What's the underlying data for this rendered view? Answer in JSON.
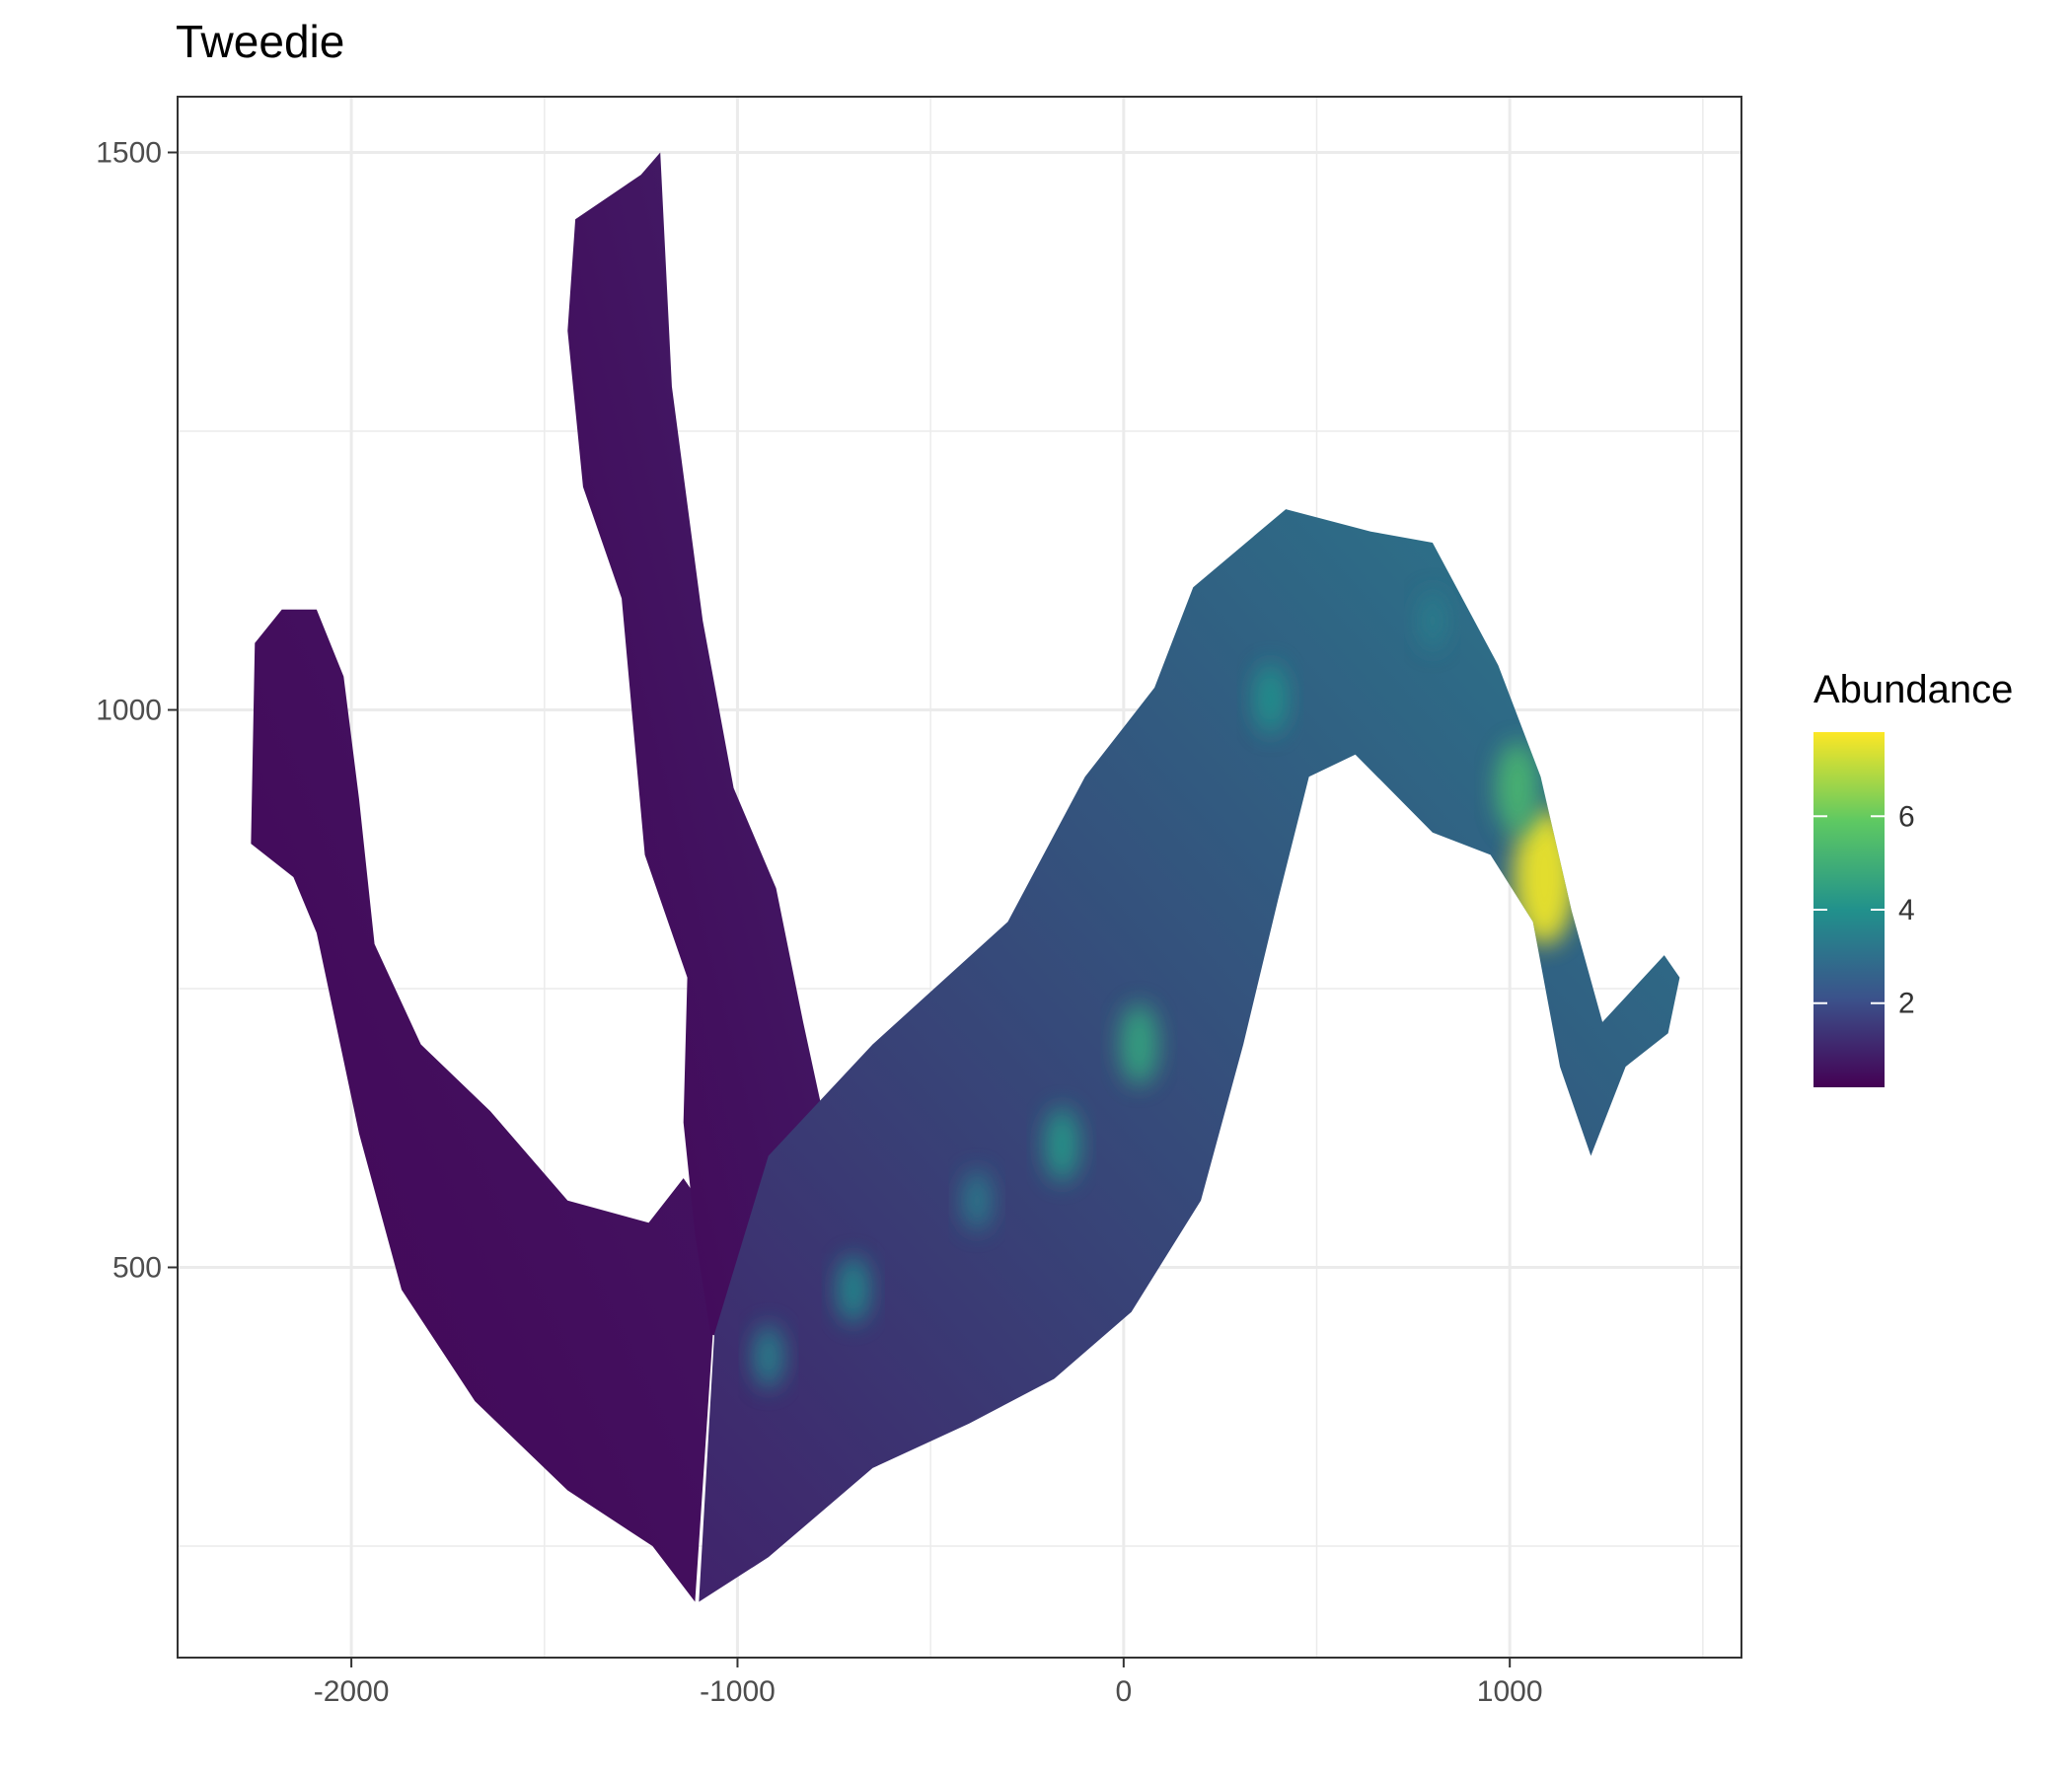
{
  "chart_data": {
    "type": "heatmap",
    "title": "Tweedie",
    "xlabel": "",
    "ylabel": "",
    "xlim": [
      -2450,
      1600
    ],
    "ylim": [
      150,
      1550
    ],
    "x_ticks": [
      -2000,
      -1000,
      0,
      1000
    ],
    "x_tick_labels": [
      "-2000",
      "-1000",
      "0",
      "1000"
    ],
    "y_ticks": [
      500,
      1000,
      1500
    ],
    "y_tick_labels": [
      "500",
      "1000",
      "1500"
    ],
    "grid": true,
    "legend": {
      "title": "Abundance",
      "position": "right",
      "ticks": [
        2,
        4,
        6
      ],
      "tick_labels": [
        "2",
        "4",
        "6"
      ],
      "range": [
        0.2,
        7.8
      ],
      "colormap": "viridis"
    },
    "colormap_stops": [
      "#440154",
      "#3b528b",
      "#21918c",
      "#5ec962",
      "#fde725"
    ],
    "regions": [
      {
        "name": "left-arm",
        "outline": [
          [
            -2090,
            1090
          ],
          [
            -2020,
            1030
          ],
          [
            -1980,
            920
          ],
          [
            -1940,
            790
          ],
          [
            -1820,
            700
          ],
          [
            -1640,
            640
          ],
          [
            -1440,
            560
          ],
          [
            -1230,
            540
          ],
          [
            -1140,
            580
          ],
          [
            -1100,
            560
          ],
          [
            -1060,
            460
          ],
          [
            -1110,
            200
          ],
          [
            -1220,
            250
          ],
          [
            -1440,
            300
          ],
          [
            -1680,
            380
          ],
          [
            -1870,
            480
          ],
          [
            -1980,
            620
          ],
          [
            -2090,
            800
          ],
          [
            -2150,
            850
          ],
          [
            -2260,
            880
          ],
          [
            -2250,
            1060
          ],
          [
            -2180,
            1090
          ]
        ],
        "value_range": [
          0.3,
          1.5
        ]
      },
      {
        "name": "tall-arm",
        "outline": [
          [
            -1200,
            1500
          ],
          [
            -1170,
            1290
          ],
          [
            -1090,
            1080
          ],
          [
            -1010,
            930
          ],
          [
            -900,
            840
          ],
          [
            -830,
            720
          ],
          [
            -780,
            640
          ],
          [
            -660,
            600
          ],
          [
            -740,
            530
          ],
          [
            -850,
            470
          ],
          [
            -960,
            430
          ],
          [
            -1070,
            440
          ],
          [
            -1110,
            530
          ],
          [
            -1140,
            630
          ],
          [
            -1130,
            760
          ],
          [
            -1240,
            870
          ],
          [
            -1300,
            1100
          ],
          [
            -1400,
            1200
          ],
          [
            -1440,
            1340
          ],
          [
            -1420,
            1440
          ],
          [
            -1250,
            1480
          ]
        ],
        "value_range": [
          0.3,
          2.2
        ]
      },
      {
        "name": "right-band",
        "outline": [
          [
            -1060,
            440
          ],
          [
            -920,
            600
          ],
          [
            -650,
            700
          ],
          [
            -300,
            810
          ],
          [
            -100,
            940
          ],
          [
            80,
            1020
          ],
          [
            180,
            1110
          ],
          [
            420,
            1180
          ],
          [
            640,
            1160
          ],
          [
            800,
            1150
          ],
          [
            970,
            1040
          ],
          [
            1080,
            940
          ],
          [
            1160,
            820
          ],
          [
            1240,
            720
          ],
          [
            1400,
            780
          ],
          [
            1440,
            760
          ],
          [
            1410,
            710
          ],
          [
            1300,
            680
          ],
          [
            1210,
            600
          ],
          [
            1130,
            680
          ],
          [
            1060,
            810
          ],
          [
            950,
            870
          ],
          [
            800,
            890
          ],
          [
            600,
            960
          ],
          [
            480,
            940
          ],
          [
            400,
            830
          ],
          [
            310,
            700
          ],
          [
            200,
            560
          ],
          [
            20,
            460
          ],
          [
            -180,
            400
          ],
          [
            -400,
            360
          ],
          [
            -650,
            320
          ],
          [
            -920,
            240
          ],
          [
            -1100,
            200
          ]
        ],
        "value_range": [
          1.0,
          7.6
        ]
      }
    ],
    "hotspots": [
      {
        "x": 1090,
        "y": 850,
        "value": 7.6
      },
      {
        "x": 1020,
        "y": 930,
        "value": 5.2
      },
      {
        "x": 40,
        "y": 700,
        "value": 4.6
      },
      {
        "x": -160,
        "y": 610,
        "value": 4.2
      },
      {
        "x": 380,
        "y": 1010,
        "value": 4.0
      },
      {
        "x": -700,
        "y": 480,
        "value": 3.8
      },
      {
        "x": -920,
        "y": 420,
        "value": 3.6
      },
      {
        "x": -380,
        "y": 560,
        "value": 3.4
      },
      {
        "x": 800,
        "y": 1080,
        "value": 3.4
      }
    ]
  }
}
